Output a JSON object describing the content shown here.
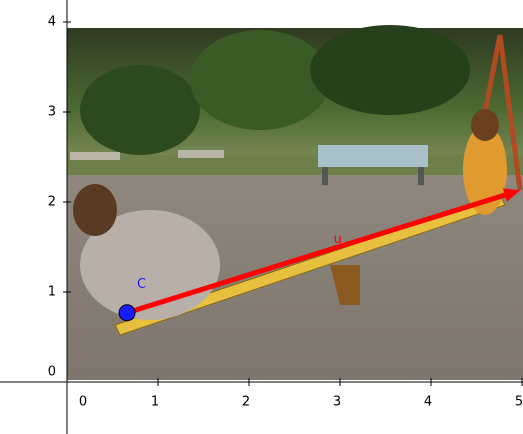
{
  "axes": {
    "xticks": [
      0,
      1,
      2,
      3,
      4,
      5
    ],
    "yticks": [
      0,
      1,
      2,
      3,
      4
    ]
  },
  "point": {
    "label": "C",
    "x": 0.66,
    "y": 0.77,
    "color": "#1a1aff"
  },
  "vector": {
    "label": "u",
    "from": [
      0.66,
      0.77
    ],
    "to": [
      4.98,
      2.13
    ],
    "color": "#ff0000"
  }
}
